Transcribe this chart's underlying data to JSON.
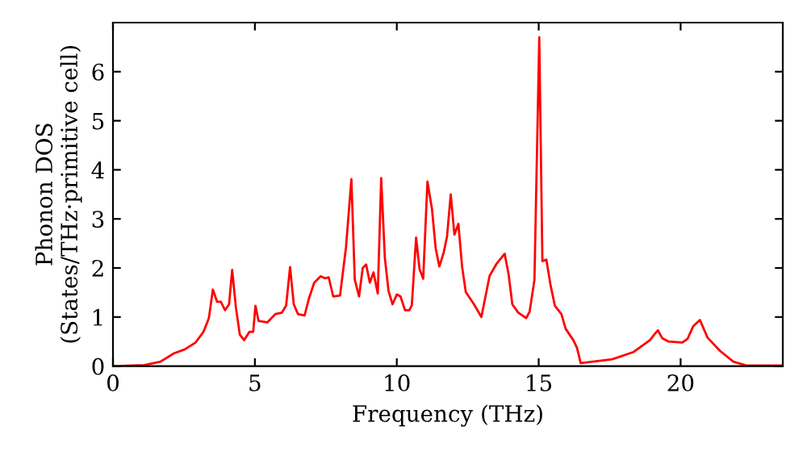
{
  "chart_data": {
    "type": "line",
    "xlabel": "Frequency (THz)",
    "ylabel": "Phonon DOS\n(States/THz·primitive cell)",
    "xlim": [
      0,
      23.6
    ],
    "ylim": [
      0,
      7
    ],
    "xticks": [
      0,
      5,
      10,
      15,
      20
    ],
    "yticks": [
      0,
      1,
      2,
      3,
      4,
      5,
      6
    ],
    "grid": false,
    "legend": false,
    "marker": "none",
    "line_style": "solid",
    "series": [
      {
        "color": "#ff0000",
        "x": [
          0,
          1.1,
          1.67,
          2.15,
          2.53,
          2.91,
          3.19,
          3.38,
          3.52,
          3.67,
          3.8,
          3.95,
          4.09,
          4.2,
          4.33,
          4.47,
          4.62,
          4.81,
          4.94,
          5.02,
          5.13,
          5.44,
          5.72,
          5.95,
          6.1,
          6.24,
          6.37,
          6.52,
          6.75,
          6.9,
          7.09,
          7.32,
          7.47,
          7.6,
          7.76,
          8.0,
          8.21,
          8.4,
          8.52,
          8.67,
          8.8,
          8.92,
          9.05,
          9.18,
          9.33,
          9.45,
          9.58,
          9.71,
          9.85,
          10.0,
          10.13,
          10.29,
          10.44,
          10.53,
          10.68,
          10.8,
          10.93,
          11.08,
          11.24,
          11.37,
          11.5,
          11.65,
          11.77,
          11.9,
          12.03,
          12.17,
          12.3,
          12.43,
          12.72,
          12.98,
          13.27,
          13.52,
          13.8,
          13.94,
          14.07,
          14.28,
          14.56,
          14.68,
          14.85,
          15.02,
          15.13,
          15.27,
          15.42,
          15.57,
          15.8,
          15.95,
          16.22,
          16.35,
          16.48,
          17.59,
          18.35,
          18.92,
          19.07,
          19.2,
          19.35,
          19.58,
          20.06,
          20.25,
          20.44,
          20.68,
          20.95,
          21.39,
          21.86,
          22.34,
          23.6
        ],
        "values": [
          0,
          0.02,
          0.09,
          0.26,
          0.34,
          0.48,
          0.7,
          0.98,
          1.56,
          1.31,
          1.31,
          1.14,
          1.26,
          1.96,
          1.2,
          0.64,
          0.53,
          0.7,
          0.7,
          1.23,
          0.92,
          0.89,
          1.06,
          1.09,
          1.23,
          2.02,
          1.26,
          1.06,
          1.03,
          1.37,
          1.7,
          1.83,
          1.79,
          1.81,
          1.42,
          1.44,
          2.42,
          3.81,
          1.76,
          1.42,
          2.0,
          2.07,
          1.7,
          1.91,
          1.48,
          3.83,
          2.2,
          1.53,
          1.26,
          1.46,
          1.42,
          1.14,
          1.14,
          1.24,
          2.62,
          1.98,
          1.78,
          3.76,
          3.2,
          2.4,
          2.03,
          2.31,
          2.64,
          3.5,
          2.68,
          2.9,
          2.03,
          1.51,
          1.26,
          1.0,
          1.84,
          2.09,
          2.29,
          1.87,
          1.26,
          1.09,
          0.98,
          1.11,
          1.76,
          6.7,
          2.14,
          2.17,
          1.64,
          1.23,
          1.06,
          0.76,
          0.53,
          0.37,
          0.06,
          0.14,
          0.29,
          0.53,
          0.64,
          0.73,
          0.57,
          0.5,
          0.48,
          0.56,
          0.81,
          0.94,
          0.58,
          0.31,
          0.09,
          0.01,
          0.01
        ]
      }
    ]
  }
}
